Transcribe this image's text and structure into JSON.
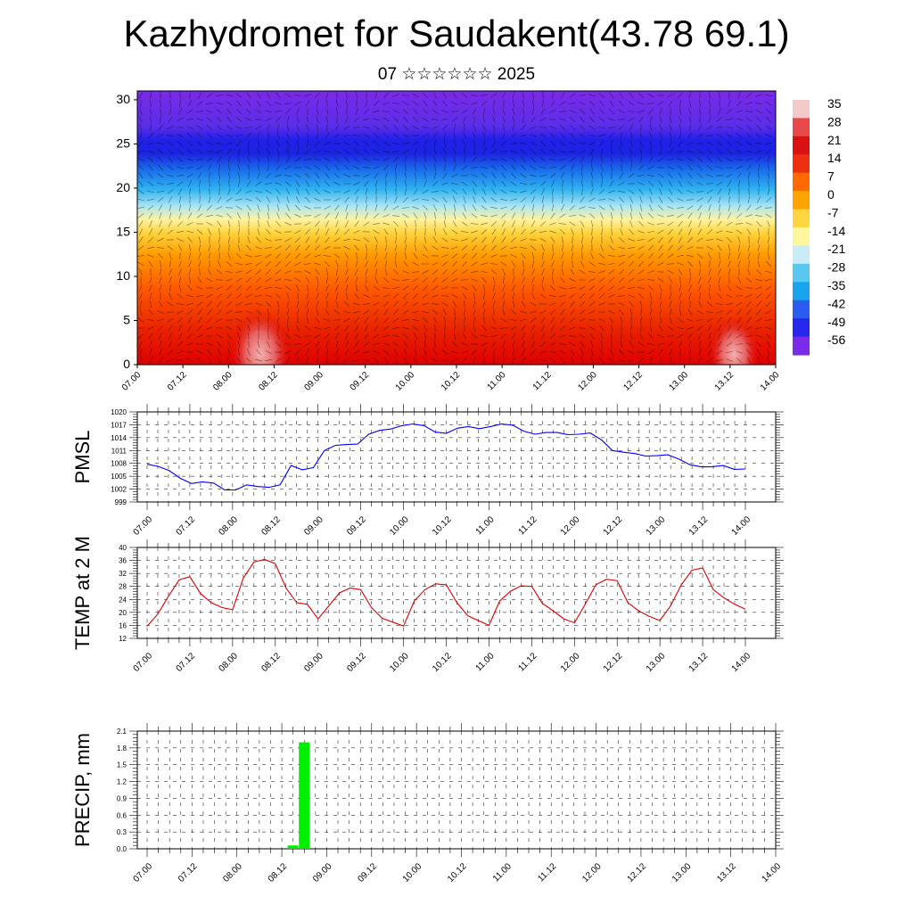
{
  "title": "Kazhydromet for Saudakent(43.78 69.1)",
  "subtitle": "07 ☆☆☆☆☆☆ 2025",
  "colors": {
    "pmsl": "#0000ff",
    "temp": "#e00000",
    "precip": "#00ee00"
  },
  "chart_data": [
    {
      "type": "heatmap",
      "name": "cross-section",
      "x_ticks": [
        "07.00",
        "07.12",
        "08.00",
        "08.12",
        "09.00",
        "09.12",
        "10.00",
        "10.12",
        "11.00",
        "11.12",
        "12.00",
        "12.12",
        "13.00",
        "13.12",
        "14.00"
      ],
      "y_ticks": [
        "0",
        "5",
        "10",
        "15",
        "20",
        "25",
        "30"
      ],
      "ylim": [
        0,
        31
      ],
      "colorbar_labels": [
        "35",
        "28",
        "21",
        "14",
        "7",
        "0",
        "-7",
        "-14",
        "-21",
        "-28",
        "-35",
        "-42",
        "-49",
        "-56"
      ],
      "colorbar_colors": [
        "#f3c9c9",
        "#e84848",
        "#d91111",
        "#ee3010",
        "#ff6a00",
        "#ffa300",
        "#ffd640",
        "#fff6a0",
        "#c8ecf8",
        "#58c8f0",
        "#18a4ec",
        "#2a5cf0",
        "#2626ec",
        "#7a2ae8"
      ]
    },
    {
      "type": "line",
      "ylabel": "PMSL",
      "ylim": [
        999,
        1020
      ],
      "y_ticks": [
        "999",
        "1002",
        "1005",
        "1008",
        "1011",
        "1014",
        "1017",
        "1020"
      ],
      "x_ticks": [
        "07.00",
        "07.12",
        "08.00",
        "08.12",
        "09.00",
        "09.12",
        "10.00",
        "10.12",
        "11.00",
        "11.12",
        "12.00",
        "12.12",
        "13.00",
        "13.12",
        "14.00"
      ],
      "values": [
        1007.8,
        1007.3,
        1006.3,
        1004.5,
        1003.3,
        1003.7,
        1003.4,
        1001.8,
        1001.8,
        1003.0,
        1002.6,
        1002.4,
        1003.0,
        1007.5,
        1006.5,
        1007.0,
        1011.0,
        1012.2,
        1012.4,
        1012.5,
        1014.8,
        1015.7,
        1016.0,
        1016.8,
        1017.2,
        1016.8,
        1015.3,
        1015.0,
        1016.2,
        1016.6,
        1016.1,
        1016.6,
        1017.2,
        1016.9,
        1015.5,
        1014.8,
        1015.2,
        1015.2,
        1014.7,
        1014.8,
        1015.1,
        1013.5,
        1011.0,
        1010.6,
        1010.3,
        1009.7,
        1009.8,
        1010.0,
        1009.0,
        1007.7,
        1007.2,
        1007.2,
        1007.5,
        1006.6,
        1006.7
      ]
    },
    {
      "type": "line",
      "ylabel": "TEMP at 2 M",
      "ylim": [
        12,
        40
      ],
      "y_ticks": [
        "12",
        "16",
        "20",
        "24",
        "28",
        "32",
        "36",
        "40"
      ],
      "x_ticks": [
        "07.00",
        "07.12",
        "08.00",
        "08.12",
        "09.00",
        "09.12",
        "10.00",
        "10.12",
        "11.00",
        "11.12",
        "12.00",
        "12.12",
        "13.00",
        "13.12",
        "14.00"
      ],
      "values": [
        15.8,
        19.5,
        25.0,
        30.0,
        31.0,
        25.8,
        23.0,
        21.5,
        20.8,
        30.5,
        35.5,
        36.3,
        35.0,
        27.5,
        23.0,
        22.5,
        18.0,
        22.0,
        26.0,
        27.5,
        27.0,
        21.5,
        18.2,
        17.0,
        15.8,
        23.5,
        27.0,
        28.8,
        28.5,
        23.0,
        19.0,
        17.5,
        16.0,
        23.5,
        26.5,
        28.2,
        28.0,
        22.8,
        20.5,
        18.0,
        16.8,
        22.5,
        28.5,
        30.2,
        29.8,
        23.0,
        20.5,
        18.8,
        17.5,
        22.0,
        28.5,
        33.0,
        33.7,
        27.0,
        24.5,
        22.5,
        21.0
      ]
    },
    {
      "type": "bar",
      "ylabel": "PRECIP, mm",
      "ylim": [
        0,
        2.1
      ],
      "y_ticks": [
        "0.0",
        "0.3",
        "0.6",
        "0.9",
        "1.2",
        "1.5",
        "1.8",
        "2.1"
      ],
      "x_ticks": [
        "07.00",
        "07.12",
        "08.00",
        "08.12",
        "09.00",
        "09.12",
        "10.00",
        "10.12",
        "11.00",
        "11.12",
        "12.00",
        "12.12",
        "13.00",
        "13.12",
        "14.00"
      ],
      "bars": [
        {
          "hour": 39,
          "value": 0.06
        },
        {
          "hour": 42,
          "value": 1.9
        }
      ]
    }
  ]
}
